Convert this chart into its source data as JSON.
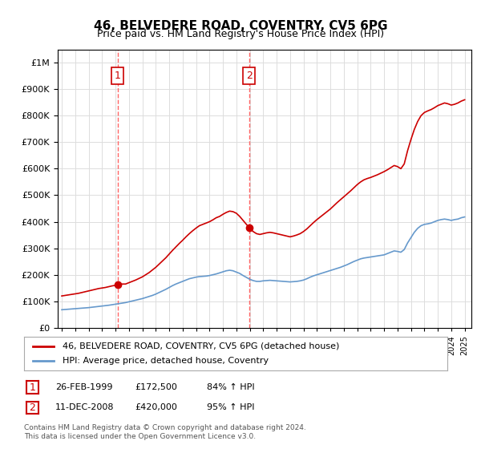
{
  "title": "46, BELVEDERE ROAD, COVENTRY, CV5 6PG",
  "subtitle": "Price paid vs. HM Land Registry's House Price Index (HPI)",
  "footer": "Contains HM Land Registry data © Crown copyright and database right 2024.\nThis data is licensed under the Open Government Licence v3.0.",
  "legend_line1": "46, BELVEDERE ROAD, COVENTRY, CV5 6PG (detached house)",
  "legend_line2": "HPI: Average price, detached house, Coventry",
  "transaction1_label": "1",
  "transaction1_date": "26-FEB-1999",
  "transaction1_price": "£172,500",
  "transaction1_hpi": "84% ↑ HPI",
  "transaction1_year": 1999.15,
  "transaction2_label": "2",
  "transaction2_date": "11-DEC-2008",
  "transaction2_price": "£420,000",
  "transaction2_hpi": "95% ↑ HPI",
  "transaction2_year": 2008.95,
  "ylim": [
    0,
    1050000
  ],
  "xlim_start": 1995,
  "xlim_end": 2025.5,
  "red_color": "#cc0000",
  "blue_color": "#6699cc",
  "dashed_color": "#ff6666",
  "background_color": "#ffffff",
  "grid_color": "#dddddd",
  "hpi_line": {
    "years": [
      1995,
      1995.25,
      1995.5,
      1995.75,
      1996,
      1996.25,
      1996.5,
      1996.75,
      1997,
      1997.25,
      1997.5,
      1997.75,
      1998,
      1998.25,
      1998.5,
      1998.75,
      1999,
      1999.25,
      1999.5,
      1999.75,
      2000,
      2000.25,
      2000.5,
      2000.75,
      2001,
      2001.25,
      2001.5,
      2001.75,
      2002,
      2002.25,
      2002.5,
      2002.75,
      2003,
      2003.25,
      2003.5,
      2003.75,
      2004,
      2004.25,
      2004.5,
      2004.75,
      2005,
      2005.25,
      2005.5,
      2005.75,
      2006,
      2006.25,
      2006.5,
      2006.75,
      2007,
      2007.25,
      2007.5,
      2007.75,
      2008,
      2008.25,
      2008.5,
      2008.75,
      2009,
      2009.25,
      2009.5,
      2009.75,
      2010,
      2010.25,
      2010.5,
      2010.75,
      2011,
      2011.25,
      2011.5,
      2011.75,
      2012,
      2012.25,
      2012.5,
      2012.75,
      2013,
      2013.25,
      2013.5,
      2013.75,
      2014,
      2014.25,
      2014.5,
      2014.75,
      2015,
      2015.25,
      2015.5,
      2015.75,
      2016,
      2016.25,
      2016.5,
      2016.75,
      2017,
      2017.25,
      2017.5,
      2017.75,
      2018,
      2018.25,
      2018.5,
      2018.75,
      2019,
      2019.25,
      2019.5,
      2019.75,
      2020,
      2020.25,
      2020.5,
      2020.75,
      2021,
      2021.25,
      2021.5,
      2021.75,
      2022,
      2022.25,
      2022.5,
      2022.75,
      2023,
      2023.25,
      2023.5,
      2023.75,
      2024,
      2024.25,
      2024.5,
      2024.75,
      2025
    ],
    "values": [
      68000,
      69000,
      70000,
      71000,
      72000,
      73000,
      74000,
      75000,
      76000,
      77500,
      79000,
      80500,
      82000,
      83500,
      85000,
      87000,
      89000,
      91000,
      93000,
      95000,
      98000,
      101000,
      104000,
      107000,
      110000,
      114000,
      118000,
      122000,
      127000,
      133000,
      139000,
      145000,
      152000,
      159000,
      165000,
      170000,
      175000,
      180000,
      185000,
      188000,
      191000,
      193000,
      194000,
      195000,
      197000,
      200000,
      203000,
      207000,
      211000,
      215000,
      217000,
      215000,
      210000,
      205000,
      197000,
      190000,
      183000,
      178000,
      175000,
      175000,
      177000,
      178000,
      179000,
      178000,
      177000,
      176000,
      175000,
      174000,
      173000,
      174000,
      175000,
      177000,
      180000,
      185000,
      191000,
      196000,
      200000,
      204000,
      208000,
      212000,
      216000,
      220000,
      224000,
      228000,
      233000,
      238000,
      244000,
      250000,
      255000,
      260000,
      263000,
      265000,
      267000,
      269000,
      271000,
      273000,
      275000,
      280000,
      285000,
      290000,
      288000,
      285000,
      295000,
      320000,
      340000,
      360000,
      375000,
      385000,
      390000,
      392000,
      395000,
      400000,
      405000,
      408000,
      410000,
      408000,
      405000,
      408000,
      410000,
      415000,
      418000
    ]
  },
  "red_line": {
    "years": [
      1995,
      1995.25,
      1995.5,
      1995.75,
      1996,
      1996.25,
      1996.5,
      1996.75,
      1997,
      1997.25,
      1997.5,
      1997.75,
      1998,
      1998.25,
      1998.5,
      1998.75,
      1999,
      1999.25,
      1999.5,
      1999.75,
      2000,
      2000.25,
      2000.5,
      2000.75,
      2001,
      2001.25,
      2001.5,
      2001.75,
      2002,
      2002.25,
      2002.5,
      2002.75,
      2003,
      2003.25,
      2003.5,
      2003.75,
      2004,
      2004.25,
      2004.5,
      2004.75,
      2005,
      2005.25,
      2005.5,
      2005.75,
      2006,
      2006.25,
      2006.5,
      2006.75,
      2007,
      2007.25,
      2007.5,
      2007.75,
      2008,
      2008.25,
      2008.5,
      2008.75,
      2009,
      2009.25,
      2009.5,
      2009.75,
      2010,
      2010.25,
      2010.5,
      2010.75,
      2011,
      2011.25,
      2011.5,
      2011.75,
      2012,
      2012.25,
      2012.5,
      2012.75,
      2013,
      2013.25,
      2013.5,
      2013.75,
      2014,
      2014.25,
      2014.5,
      2014.75,
      2015,
      2015.25,
      2015.5,
      2015.75,
      2016,
      2016.25,
      2016.5,
      2016.75,
      2017,
      2017.25,
      2017.5,
      2017.75,
      2018,
      2018.25,
      2018.5,
      2018.75,
      2019,
      2019.25,
      2019.5,
      2019.75,
      2020,
      2020.25,
      2020.5,
      2020.75,
      2021,
      2021.25,
      2021.5,
      2021.75,
      2022,
      2022.25,
      2022.5,
      2022.75,
      2023,
      2023.25,
      2023.5,
      2023.75,
      2024,
      2024.25,
      2024.5,
      2024.75,
      2025
    ],
    "values": [
      120000,
      122000,
      124000,
      126000,
      128000,
      130000,
      133000,
      136000,
      139000,
      142000,
      145000,
      148000,
      150000,
      152000,
      155000,
      158000,
      160000,
      162000,
      165000,
      165000,
      170000,
      175000,
      180000,
      186000,
      192000,
      200000,
      208000,
      218000,
      228000,
      240000,
      252000,
      264000,
      278000,
      292000,
      305000,
      318000,
      330000,
      343000,
      355000,
      366000,
      376000,
      385000,
      390000,
      395000,
      400000,
      407000,
      415000,
      420000,
      428000,
      435000,
      440000,
      438000,
      432000,
      420000,
      405000,
      390000,
      375000,
      363000,
      355000,
      352000,
      355000,
      358000,
      360000,
      358000,
      355000,
      352000,
      349000,
      346000,
      343000,
      346000,
      350000,
      355000,
      363000,
      373000,
      385000,
      397000,
      408000,
      418000,
      428000,
      438000,
      448000,
      460000,
      472000,
      483000,
      494000,
      505000,
      516000,
      528000,
      540000,
      550000,
      558000,
      563000,
      567000,
      572000,
      577000,
      583000,
      589000,
      596000,
      604000,
      612000,
      608000,
      600000,
      618000,
      668000,
      710000,
      748000,
      778000,
      800000,
      812000,
      818000,
      823000,
      830000,
      838000,
      843000,
      848000,
      845000,
      840000,
      843000,
      848000,
      855000,
      860000
    ]
  }
}
